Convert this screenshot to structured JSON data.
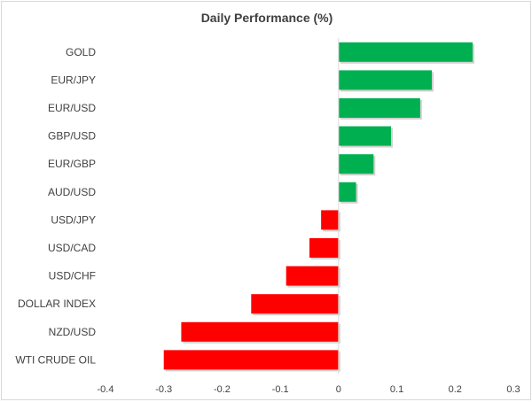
{
  "chart_data": {
    "type": "bar",
    "orientation": "horizontal",
    "title": "Daily Performance (%)",
    "xlabel": "",
    "ylabel": "",
    "categories": [
      "GOLD",
      "EUR/JPY",
      "EUR/USD",
      "GBP/USD",
      "EUR/GBP",
      "AUD/USD",
      "USD/JPY",
      "USD/CAD",
      "USD/CHF",
      "DOLLAR INDEX",
      "NZD/USD",
      "WTI CRUDE OIL"
    ],
    "values": [
      0.23,
      0.16,
      0.14,
      0.09,
      0.06,
      0.03,
      -0.03,
      -0.05,
      -0.09,
      -0.15,
      -0.27,
      -0.3
    ],
    "xlim": [
      -0.4,
      0.3
    ],
    "xticks": [
      -0.4,
      -0.3,
      -0.2,
      -0.1,
      0,
      0.1,
      0.2,
      0.3
    ],
    "xtick_labels": [
      "-0.4",
      "-0.3",
      "-0.2",
      "-0.1",
      "0",
      "0.1",
      "0.2",
      "0.3"
    ],
    "grid": false,
    "legend": "none",
    "colors": {
      "positive": "#00b050",
      "negative": "#ff0000",
      "axis": "#d9d9d9",
      "text": "#404040"
    }
  }
}
